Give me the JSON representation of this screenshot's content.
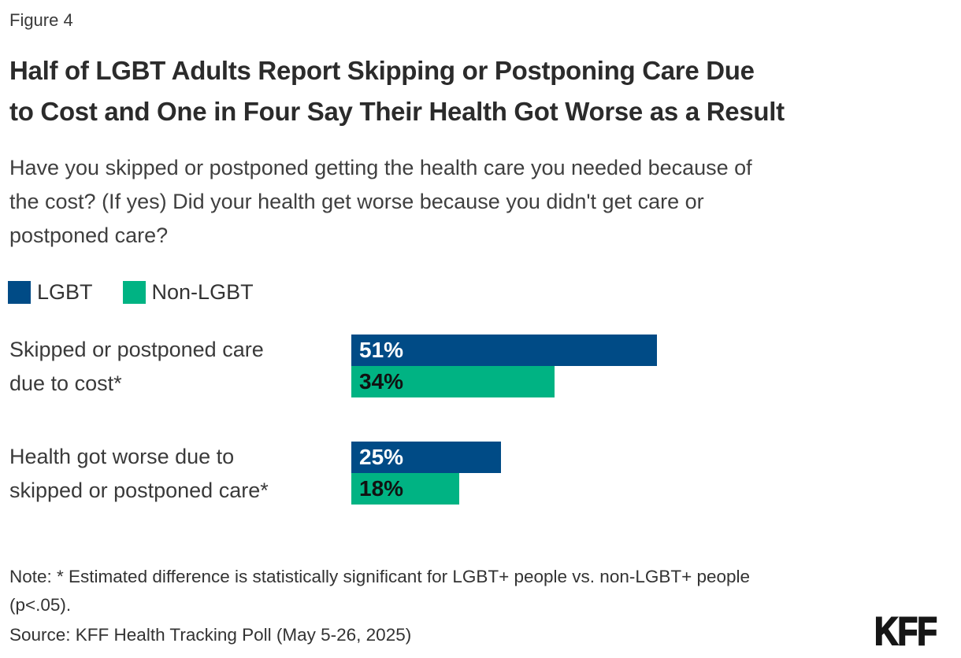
{
  "figure_label": "Figure 4",
  "title_lines": [
    "Half of LGBT Adults Report Skipping or Postponing Care Due",
    "to Cost and One in Four Say Their Health Got Worse as a Result"
  ],
  "subtitle_lines": [
    "Have you skipped or postponed getting the health care you needed because of",
    "the cost? (If yes) Did your health get worse because you didn't get care or",
    "postponed care?"
  ],
  "colors": {
    "lgbt_blue": "#004b86",
    "non_lgbt_green": "#00b383"
  },
  "legend": {
    "items": [
      {
        "label": "LGBT",
        "color": "#004b86"
      },
      {
        "label": "Non-LGBT",
        "color": "#00b383"
      }
    ]
  },
  "chart_data": {
    "type": "bar",
    "orientation": "horizontal",
    "title": "Half of LGBT Adults Report Skipping or Postponing Care Due to Cost and One in Four Say Their Health Got Worse as a Result",
    "subtitle": "Have you skipped or postponed getting the health care you needed because of the cost? (If yes) Did your health get worse because you didn't get care or postponed care?",
    "categories": [
      "Skipped or postponed care due to cost*",
      "Health got worse due to skipped or postponed care*"
    ],
    "series": [
      {
        "name": "LGBT",
        "color": "#004b86",
        "values": [
          51,
          25
        ]
      },
      {
        "name": "Non-LGBT",
        "color": "#00b383",
        "values": [
          34,
          18
        ]
      }
    ],
    "unit": "%",
    "xlim": [
      0,
      100
    ],
    "grid": false,
    "legend_position": "top-left",
    "data_labels": "inside-start"
  },
  "rows": [
    {
      "label_line1": "Skipped or postponed care",
      "label_line2": "due to cost*",
      "lgbt_value": 51,
      "lgbt_label": "51%",
      "non_lgbt_value": 34,
      "non_lgbt_label": "34%"
    },
    {
      "label_line1": "Health got worse due to",
      "label_line2": "skipped or postponed care*",
      "lgbt_value": 25,
      "lgbt_label": "25%",
      "non_lgbt_value": 18,
      "non_lgbt_label": "18%"
    }
  ],
  "note_lines": [
    "Note: * Estimated difference is statistically significant for LGBT+ people vs. non-LGBT+ people",
    "(p<.05)."
  ],
  "source": "Source: KFF Health Tracking Poll (May 5-26, 2025)",
  "logo_text": "KFF"
}
